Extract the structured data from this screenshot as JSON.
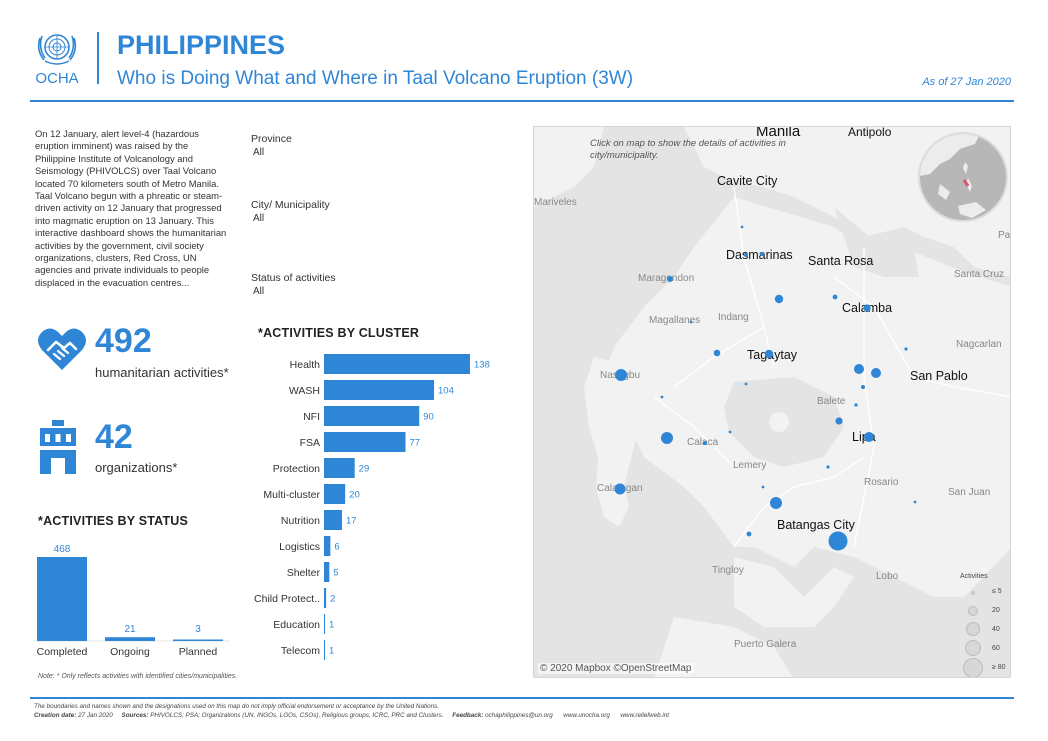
{
  "header": {
    "logo_text": "OCHA",
    "title": "PHILIPPINES",
    "subtitle": "Who is Doing What and Where in Taal Volcano Eruption (3W)",
    "as_of": "As of 27 Jan 2020"
  },
  "intro_text": "On 12 January, alert level-4 (hazardous eruption imminent) was raised by the Philippine Institute of Volcanology and Seismology (PHIVOLCS) over Taal Volcano located 70 kilometers south of Metro Manila. Taal Volcano begun with a phreatic or steam-driven activity on 12 January that progressed into magmatic eruption on 13 January. This interactive dashboard shows the humanitarian activities by the government, civil society organizations, clusters, Red Cross, UN agencies and private individuals to people displaced in the evacuation centres...",
  "filters": [
    {
      "label": "Province",
      "value": "All"
    },
    {
      "label": "City/ Municipality",
      "value": "All"
    },
    {
      "label": "Status of activities",
      "value": "All"
    }
  ],
  "kpis": {
    "activities": {
      "value": "492",
      "label": "humanitarian activities*",
      "icon": "handshake-heart-icon"
    },
    "organizations": {
      "value": "42",
      "label": "organizations*",
      "icon": "building-icon"
    }
  },
  "sections": {
    "by_cluster": "*ACTIVITIES BY CLUSTER",
    "by_status": "*ACTIVITIES BY STATUS"
  },
  "note": "Note: * Only reflects activities with identified cities/municipalities.",
  "colors": {
    "accent": "#2f86d6",
    "bar": "#2f86d6",
    "map_bg": "#e4e4e4",
    "dot": "#2f86d6"
  },
  "chart_data": [
    {
      "type": "bar",
      "orientation": "horizontal",
      "title": "*ACTIVITIES BY CLUSTER",
      "categories": [
        "Health",
        "WASH",
        "NFI",
        "FSA",
        "Protection",
        "Multi-cluster",
        "Nutrition",
        "Logistics",
        "Shelter",
        "Child Protect..",
        "Education",
        "Telecom"
      ],
      "values": [
        138,
        104,
        90,
        77,
        29,
        20,
        17,
        6,
        5,
        2,
        1,
        1
      ],
      "xlim": [
        0,
        138
      ]
    },
    {
      "type": "bar",
      "title": "*ACTIVITIES BY STATUS",
      "categories": [
        "Completed",
        "Ongoing",
        "Planned"
      ],
      "values": [
        468,
        21,
        3
      ],
      "ylim": [
        0,
        468
      ]
    }
  ],
  "map": {
    "hint": "Click on map to show the details of activities in city/municipality.",
    "credit": "© 2020 Mapbox ©OpenStreetMap",
    "major_labels": [
      "Manila",
      "Antipolo",
      "Cavite City",
      "Dasmarinas",
      "Santa Rosa",
      "Calamba",
      "Tagaytay",
      "San Pablo",
      "Lipa",
      "Batangas City"
    ],
    "minor_labels": [
      "Mariveles",
      "Maragondon",
      "Magallanes",
      "Indang",
      "Nasugbu",
      "Calaca",
      "Lemery",
      "Balete",
      "Rosario",
      "San Juan",
      "Calatagan",
      "Tingloy",
      "Lobo",
      "Puerto Galera",
      "Nagcarlan",
      "Santa Cruz",
      "Pa"
    ],
    "legend": {
      "title": "Activities",
      "items": [
        "≤ 5",
        "20",
        "40",
        "60",
        "≥ 80"
      ]
    }
  },
  "footer": {
    "disclaimer": "The boundaries and names shown and the designations used on this map do not imply official endorsement or acceptance by the United Nations.",
    "creation_label": "Creation date:",
    "creation_date": "27 Jan 2020",
    "sources_label": "Sources:",
    "sources": "PHIVOLCS; PSA; Organizations (UN, INGOs, LGOs, CSOs), Religious groups, ICRC, PRC and Clusters.",
    "feedback_label": "Feedback:",
    "feedback": "ochaphilippines@un.org",
    "links": [
      "www.unocha.org",
      "www.reliefweb.int"
    ]
  }
}
